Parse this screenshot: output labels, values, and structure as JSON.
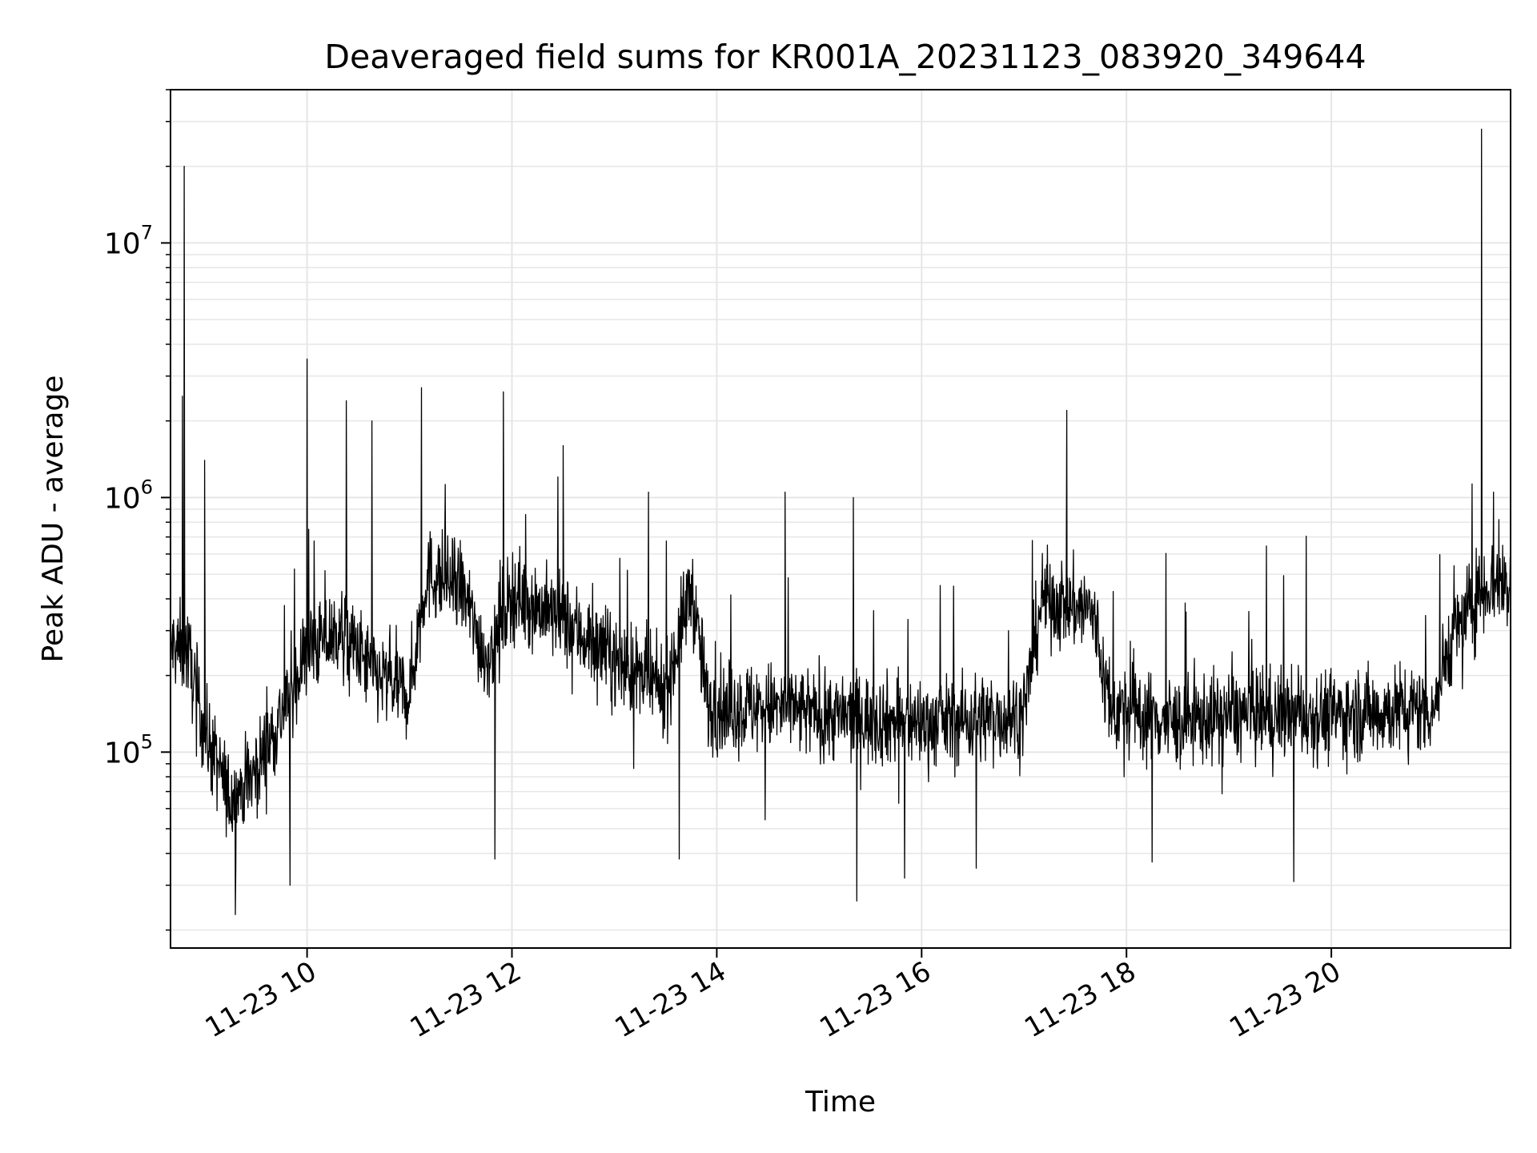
{
  "chart_data": {
    "type": "line",
    "title": "Deaveraged field sums for KR001A_20231123_083920_349644",
    "xlabel": "Time",
    "ylabel": "Peak ADU - average",
    "xlim": [
      "2023-11-23T08:40",
      "2023-11-23T21:45"
    ],
    "ylim": [
      17000,
      40000000
    ],
    "yscale": "log",
    "grid": true,
    "line_color": "#000000",
    "grid_color": "#e6e6e6",
    "x_ticks": [
      {
        "value": "2023-11-23T10:00",
        "label": "11-23 10"
      },
      {
        "value": "2023-11-23T12:00",
        "label": "11-23 12"
      },
      {
        "value": "2023-11-23T14:00",
        "label": "11-23 14"
      },
      {
        "value": "2023-11-23T16:00",
        "label": "11-23 16"
      },
      {
        "value": "2023-11-23T18:00",
        "label": "11-23 18"
      },
      {
        "value": "2023-11-23T20:00",
        "label": "11-23 20"
      }
    ],
    "y_ticks": [
      {
        "value": 100000,
        "base": "10",
        "exp": "5"
      },
      {
        "value": 1000000,
        "base": "10",
        "exp": "6"
      },
      {
        "value": 10000000,
        "base": "10",
        "exp": "7"
      }
    ],
    "series": [
      {
        "baseline": [
          [
            "2023-11-23T08:40",
            260000
          ],
          [
            "2023-11-23T08:50",
            250000
          ],
          [
            "2023-11-23T09:00",
            120000
          ],
          [
            "2023-11-23T09:15",
            65000
          ],
          [
            "2023-11-23T09:30",
            85000
          ],
          [
            "2023-11-23T09:45",
            140000
          ],
          [
            "2023-11-23T10:00",
            250000
          ],
          [
            "2023-11-23T10:20",
            300000
          ],
          [
            "2023-11-23T10:40",
            200000
          ],
          [
            "2023-11-23T11:00",
            170000
          ],
          [
            "2023-11-23T11:10",
            500000
          ],
          [
            "2023-11-23T11:30",
            450000
          ],
          [
            "2023-11-23T11:45",
            230000
          ],
          [
            "2023-11-23T12:00",
            420000
          ],
          [
            "2023-11-23T12:30",
            330000
          ],
          [
            "2023-11-23T13:00",
            230000
          ],
          [
            "2023-11-23T13:30",
            170000
          ],
          [
            "2023-11-23T13:45",
            450000
          ],
          [
            "2023-11-23T13:55",
            150000
          ],
          [
            "2023-11-23T14:30",
            150000
          ],
          [
            "2023-11-23T15:00",
            140000
          ],
          [
            "2023-11-23T16:00",
            130000
          ],
          [
            "2023-11-23T17:00",
            140000
          ],
          [
            "2023-11-23T17:10",
            400000
          ],
          [
            "2023-11-23T17:40",
            360000
          ],
          [
            "2023-11-23T17:50",
            150000
          ],
          [
            "2023-11-23T18:30",
            130000
          ],
          [
            "2023-11-23T19:00",
            140000
          ],
          [
            "2023-11-23T20:00",
            140000
          ],
          [
            "2023-11-23T21:00",
            150000
          ],
          [
            "2023-11-23T21:10",
            280000
          ],
          [
            "2023-11-23T21:30",
            450000
          ],
          [
            "2023-11-23T21:45",
            460000
          ]
        ],
        "peaks": [
          [
            "2023-11-23T08:48",
            20000000
          ],
          [
            "2023-11-23T08:47",
            2500000
          ],
          [
            "2023-11-23T09:00",
            1400000
          ],
          [
            "2023-11-23T09:18",
            23000
          ],
          [
            "2023-11-23T09:50",
            30000
          ],
          [
            "2023-11-23T10:00",
            3500000
          ],
          [
            "2023-11-23T10:23",
            2400000
          ],
          [
            "2023-11-23T10:38",
            2000000
          ],
          [
            "2023-11-23T11:07",
            2700000
          ],
          [
            "2023-11-23T11:55",
            2600000
          ],
          [
            "2023-11-23T11:50",
            38000
          ],
          [
            "2023-11-23T12:30",
            1600000
          ],
          [
            "2023-11-23T13:20",
            1050000
          ],
          [
            "2023-11-23T13:38",
            38000
          ],
          [
            "2023-11-23T14:40",
            1050000
          ],
          [
            "2023-11-23T15:20",
            1000000
          ],
          [
            "2023-11-23T15:22",
            26000
          ],
          [
            "2023-11-23T15:50",
            32000
          ],
          [
            "2023-11-23T16:32",
            35000
          ],
          [
            "2023-11-23T17:25",
            2200000
          ],
          [
            "2023-11-23T18:15",
            37000
          ],
          [
            "2023-11-23T19:38",
            31000
          ],
          [
            "2023-11-23T21:28",
            28000000
          ],
          [
            "2023-11-23T21:35",
            1050000
          ]
        ]
      }
    ]
  }
}
